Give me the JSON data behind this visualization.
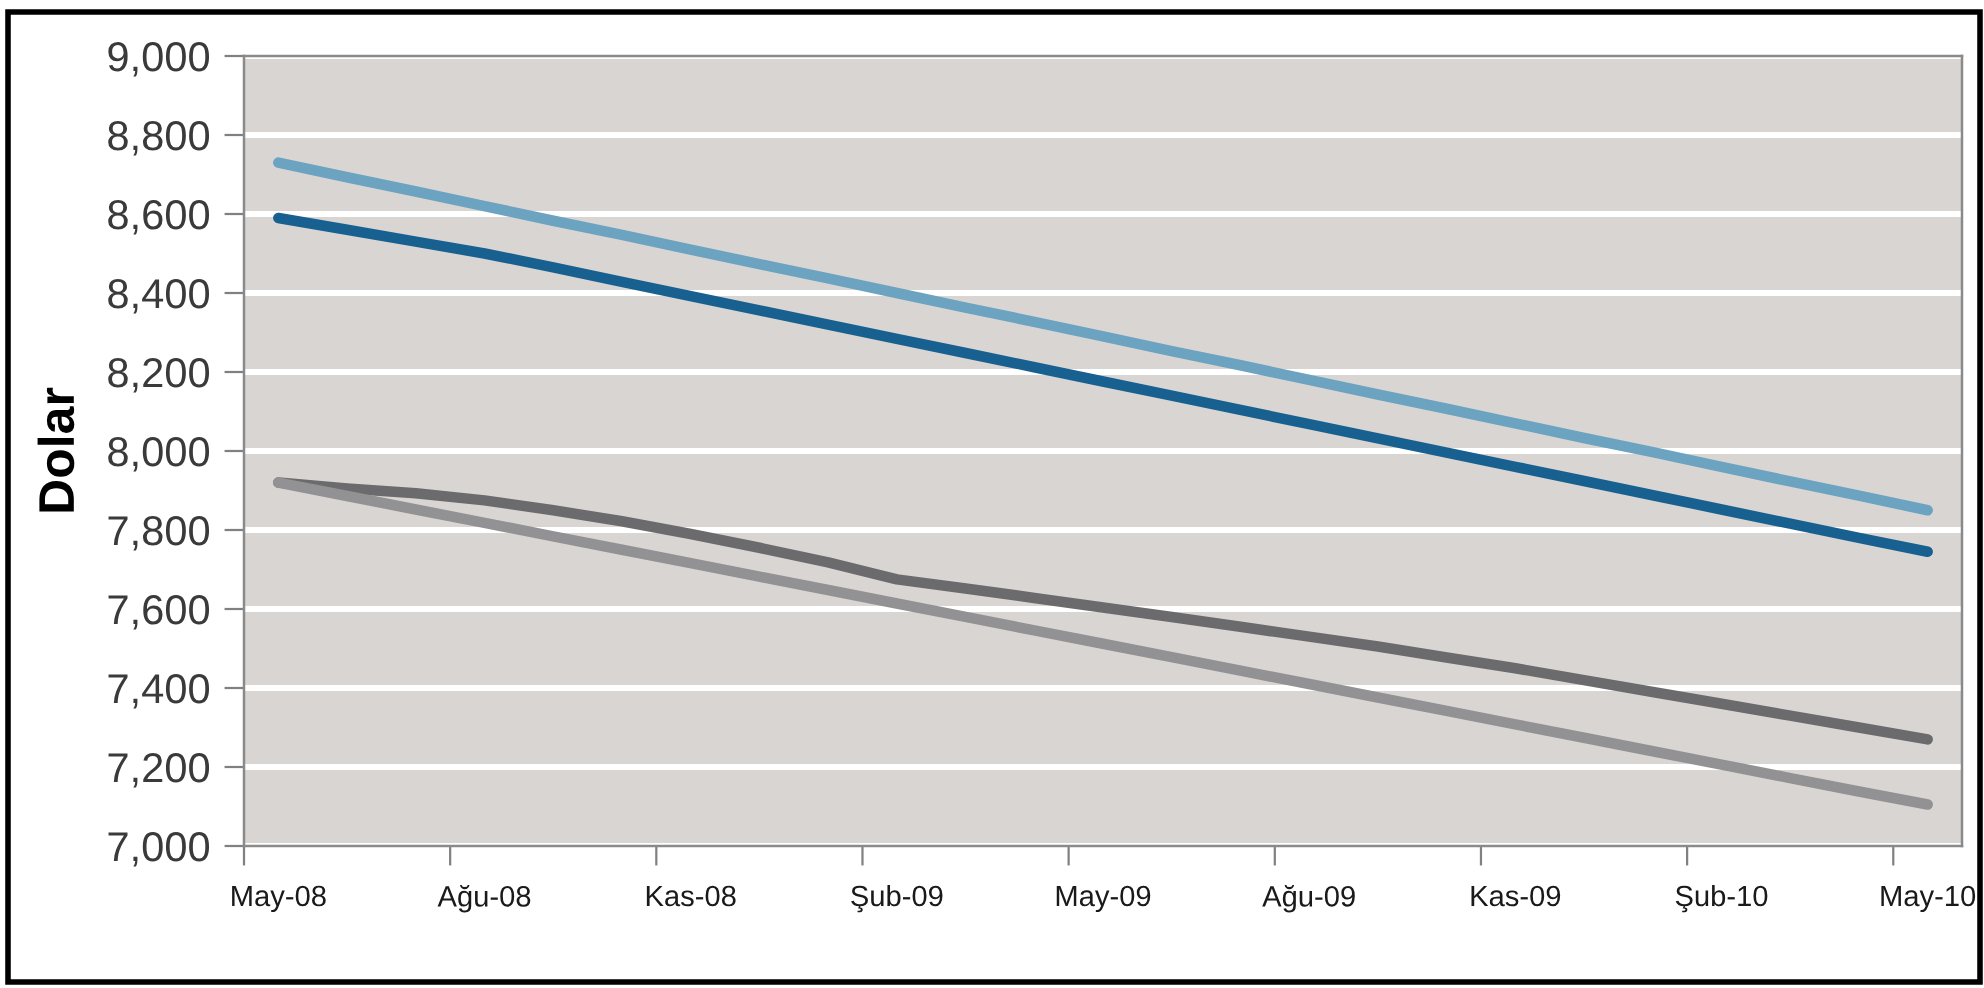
{
  "chart_data": {
    "type": "line",
    "ylabel": "Dolar",
    "categories": [
      "May-08",
      null,
      null,
      "Ağu-08",
      null,
      null,
      "Kas-08",
      null,
      null,
      "Şub-09",
      null,
      null,
      "May-09",
      null,
      null,
      "Ağu-09",
      null,
      null,
      "Kas-09",
      null,
      null,
      "Şub-10",
      null,
      null,
      "May-10"
    ],
    "series": [
      {
        "color": "#6ba3c0",
        "values": [
          8730,
          8693,
          8657,
          8620,
          8583,
          8547,
          8510,
          8473,
          8437,
          8400,
          8363,
          8327,
          8290,
          8253,
          8217,
          8180,
          8143,
          8107,
          8070,
          8033,
          7997,
          7960,
          7923,
          7887,
          7850
        ]
      },
      {
        "color": "#17608f",
        "values": [
          8590,
          8560,
          8530,
          8500,
          8465,
          8428,
          8392,
          8356,
          8320,
          8284,
          8248,
          8212,
          8176,
          8140,
          8104,
          8068,
          8032,
          7996,
          7960,
          7924,
          7888,
          7852,
          7816,
          7780,
          7745
        ]
      },
      {
        "color": "#6b6b6d",
        "values": [
          7920,
          7905,
          7893,
          7875,
          7850,
          7822,
          7790,
          7755,
          7718,
          7675,
          7652,
          7628,
          7604,
          7580,
          7555,
          7530,
          7505,
          7477,
          7450,
          7420,
          7390,
          7360,
          7330,
          7300,
          7270
        ]
      },
      {
        "color": "#929294",
        "values": [
          7920,
          7886,
          7852,
          7818,
          7784,
          7750,
          7716,
          7682,
          7648,
          7614,
          7580,
          7546,
          7512,
          7478,
          7444,
          7410,
          7376,
          7342,
          7308,
          7274,
          7240,
          7206,
          7172,
          7138,
          7105
        ]
      }
    ],
    "ylim": [
      7000,
      9000
    ],
    "yticks": [
      {
        "value": 7000,
        "label": "7,000"
      },
      {
        "value": 7200,
        "label": "7,200"
      },
      {
        "value": 7400,
        "label": "7,400"
      },
      {
        "value": 7600,
        "label": "7,600"
      },
      {
        "value": 7800,
        "label": "7,800"
      },
      {
        "value": 8000,
        "label": "8,000"
      },
      {
        "value": 8200,
        "label": "8,200"
      },
      {
        "value": 8400,
        "label": "8,400"
      },
      {
        "value": 8600,
        "label": "8,600"
      },
      {
        "value": 8800,
        "label": "8,800"
      },
      {
        "value": 9000,
        "label": "9,000"
      }
    ],
    "grid": "y",
    "line_style": "solid"
  }
}
